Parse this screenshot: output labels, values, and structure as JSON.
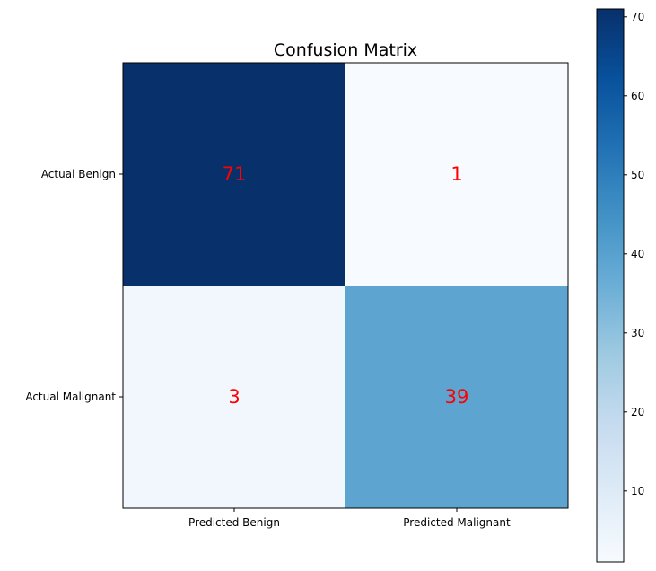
{
  "chart_data": {
    "type": "heatmap",
    "title": "Confusion Matrix",
    "x_categories": [
      "Predicted Benign",
      "Predicted Malignant"
    ],
    "y_categories": [
      "Actual Benign",
      "Actual Malignant"
    ],
    "values": [
      [
        71,
        1
      ],
      [
        3,
        39
      ]
    ],
    "colormap": "Blues",
    "color_range": [
      1,
      71
    ],
    "colorbar_ticks": [
      10,
      20,
      30,
      40,
      50,
      60,
      70
    ],
    "annotation_color": "#ff0000",
    "grid": false
  }
}
